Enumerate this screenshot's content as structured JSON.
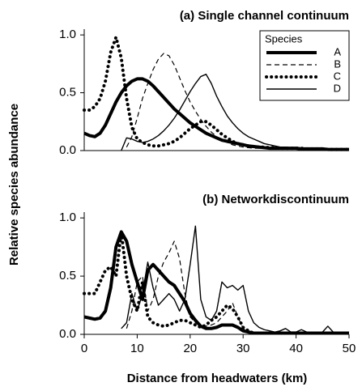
{
  "chart_data": [
    {
      "type": "line",
      "title": "(a) Single channel continuum",
      "ylabel": "Relative species abundance",
      "legend_title": "Species",
      "legend": "upper right",
      "x": [
        0,
        1,
        2,
        3,
        4,
        5,
        6,
        7,
        8,
        9,
        10,
        11,
        12,
        13,
        14,
        15,
        16,
        17,
        18,
        19,
        20,
        21,
        22,
        23,
        24,
        25,
        26,
        27,
        28,
        29,
        30,
        31,
        32,
        33,
        34,
        35,
        36,
        37,
        38,
        39,
        40,
        41,
        42,
        43,
        44,
        45,
        46,
        47,
        48,
        49,
        50
      ],
      "xlim": [
        0,
        50
      ],
      "ylim": [
        0,
        1.05
      ],
      "yticks": [
        {
          "value": 0,
          "label": "0.0"
        },
        0.5,
        {
          "value": 1,
          "label": "1.0"
        }
      ],
      "series": [
        {
          "name": "A",
          "color": "#000000",
          "width": 4,
          "dash": "solid",
          "values": [
            0.15,
            0.13,
            0.12,
            0.15,
            0.22,
            0.32,
            0.42,
            0.5,
            0.56,
            0.6,
            0.62,
            0.62,
            0.6,
            0.56,
            0.51,
            0.46,
            0.41,
            0.36,
            0.32,
            0.28,
            0.24,
            0.21,
            0.18,
            0.15,
            0.13,
            0.11,
            0.09,
            0.08,
            0.07,
            0.06,
            0.05,
            0.04,
            0.035,
            0.03,
            0.025,
            0.02,
            0.02,
            0.02,
            0.02,
            0.02,
            0.02,
            0.015,
            0.015,
            0.015,
            0.015,
            0.015,
            0.01,
            0.01,
            0.01,
            0.01,
            0.01
          ]
        },
        {
          "name": "B",
          "color": "#000000",
          "width": 1.2,
          "dash": "dashed",
          "values": [
            null,
            null,
            null,
            null,
            null,
            null,
            null,
            null,
            0.03,
            0.12,
            0.28,
            0.45,
            0.58,
            0.7,
            0.79,
            0.84,
            0.82,
            0.74,
            0.63,
            0.52,
            0.42,
            0.34,
            0.27,
            0.21,
            0.16,
            0.12,
            0.09,
            0.07,
            0.05,
            0.04,
            0.03,
            0.025,
            0.02,
            0.02,
            0.02,
            0.02,
            0.015,
            0.015,
            0.015,
            0.015,
            0.015,
            0.01,
            0.01,
            0.01,
            0.01,
            0.01,
            0.01,
            0.01,
            0.01,
            0.01,
            0.01
          ]
        },
        {
          "name": "C",
          "color": "#000000",
          "width": 4,
          "dash": "dotted",
          "values": [
            0.35,
            0.35,
            0.38,
            0.45,
            0.6,
            0.85,
            0.98,
            0.8,
            0.45,
            0.2,
            0.1,
            0.07,
            0.05,
            0.04,
            0.04,
            0.05,
            0.06,
            0.08,
            0.11,
            0.15,
            0.19,
            0.22,
            0.25,
            0.25,
            0.22,
            0.18,
            0.14,
            0.11,
            0.08,
            0.06,
            0.05,
            0.04,
            0.035,
            0.03,
            0.03,
            0.025,
            0.025,
            0.02,
            0.02,
            0.02,
            0.02,
            0.02,
            0.015,
            0.015,
            0.015,
            0.015,
            0.01,
            0.01,
            0.01,
            0.01,
            0.01
          ]
        },
        {
          "name": "D",
          "color": "#000000",
          "width": 1.4,
          "dash": "solid",
          "values": [
            null,
            null,
            null,
            null,
            null,
            null,
            null,
            0.0,
            0.11,
            0.1,
            0.08,
            0.07,
            0.08,
            0.1,
            0.13,
            0.17,
            0.22,
            0.28,
            0.35,
            0.43,
            0.51,
            0.58,
            0.64,
            0.66,
            0.58,
            0.47,
            0.38,
            0.3,
            0.24,
            0.19,
            0.15,
            0.12,
            0.1,
            0.08,
            0.06,
            0.05,
            0.04,
            0.03,
            0.03,
            0.025,
            0.02,
            0.02,
            0.02,
            0.015,
            0.015,
            0.015,
            0.01,
            0.01,
            0.01,
            0.01,
            0.01
          ]
        }
      ]
    },
    {
      "type": "line",
      "title": "(b) Networkdiscontinuum",
      "xlabel": "Distance from headwaters (km)",
      "x": [
        0,
        1,
        2,
        3,
        4,
        5,
        6,
        7,
        8,
        9,
        10,
        11,
        12,
        13,
        14,
        15,
        16,
        17,
        18,
        19,
        20,
        21,
        22,
        23,
        24,
        25,
        26,
        27,
        28,
        29,
        30,
        31,
        32,
        33,
        34,
        35,
        36,
        37,
        38,
        39,
        40,
        41,
        42,
        43,
        44,
        45,
        46,
        47,
        48,
        49,
        50
      ],
      "xlim": [
        0,
        50
      ],
      "ylim": [
        0,
        1.05
      ],
      "xticks": [
        0,
        10,
        20,
        30,
        40,
        50
      ],
      "yticks": [
        {
          "value": 0,
          "label": "0.0"
        },
        0.5,
        {
          "value": 1,
          "label": "1.0"
        }
      ],
      "series": [
        {
          "color": "#000000",
          "width": 4,
          "dash": "solid",
          "values": [
            0.15,
            0.14,
            0.13,
            0.14,
            0.2,
            0.4,
            0.75,
            0.88,
            0.8,
            0.6,
            0.45,
            0.3,
            0.55,
            0.6,
            0.55,
            0.5,
            0.45,
            0.42,
            0.35,
            0.28,
            0.18,
            0.12,
            0.07,
            0.05,
            0.05,
            0.06,
            0.08,
            0.08,
            0.08,
            0.06,
            0.03,
            0.02,
            0.01,
            0.01,
            0.01,
            0.01,
            0.01,
            0.01,
            0.01,
            0.01,
            0.01,
            0.01,
            0.01,
            0.01,
            0.01,
            0.01,
            0.01,
            0.01,
            0.01,
            0.01,
            0.01
          ]
        },
        {
          "color": "#000000",
          "width": 1.2,
          "dash": "dashed",
          "values": [
            null,
            null,
            null,
            null,
            null,
            null,
            null,
            null,
            0.05,
            0.2,
            0.45,
            0.5,
            0.2,
            0.3,
            0.5,
            0.62,
            0.7,
            0.8,
            0.65,
            0.35,
            0.15,
            0.1,
            0.08,
            0.07,
            0.08,
            0.1,
            0.15,
            0.2,
            0.27,
            0.15,
            0.05,
            0.03,
            0.01,
            0.01,
            0.01,
            0.01,
            0.01,
            0.01,
            0.01,
            0.01,
            0.01,
            0.01,
            0.01,
            0.01,
            0.01,
            0.01,
            0.01,
            0.01,
            0.01,
            0.01,
            0.01
          ]
        },
        {
          "color": "#000000",
          "width": 4,
          "dash": "dotted",
          "values": [
            0.35,
            0.35,
            0.35,
            0.45,
            0.55,
            0.58,
            0.5,
            0.88,
            0.5,
            0.3,
            0.2,
            0.45,
            0.15,
            0.1,
            0.08,
            0.07,
            0.08,
            0.1,
            0.12,
            0.12,
            0.1,
            0.08,
            0.06,
            0.08,
            0.12,
            0.15,
            0.2,
            0.25,
            0.22,
            0.15,
            0.06,
            0.03,
            0.01,
            0.01,
            0.01,
            0.01,
            0.01,
            0.01,
            0.01,
            0.01,
            0.01,
            0.01,
            0.01,
            0.01,
            0.01,
            0.01,
            0.01,
            0.01,
            0.01,
            0.01,
            0.01
          ]
        },
        {
          "color": "#000000",
          "width": 1.4,
          "dash": "solid",
          "values": [
            null,
            null,
            null,
            null,
            null,
            null,
            null,
            0.05,
            0.1,
            0.35,
            0.2,
            0.35,
            0.62,
            0.4,
            0.25,
            0.3,
            0.35,
            0.3,
            0.2,
            0.3,
            0.6,
            0.93,
            0.3,
            0.15,
            0.12,
            0.2,
            0.45,
            0.4,
            0.42,
            0.38,
            0.42,
            0.2,
            0.1,
            0.06,
            0.04,
            0.03,
            0.02,
            0.03,
            0.05,
            0.02,
            0.02,
            0.04,
            0.02,
            0.01,
            0.01,
            0.02,
            0.07,
            0.02,
            0.01,
            0.01,
            0.01
          ]
        }
      ]
    }
  ]
}
